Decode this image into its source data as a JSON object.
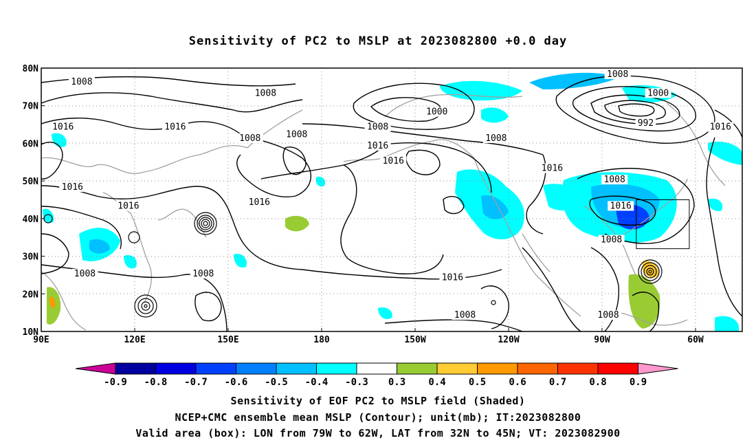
{
  "title": "Sensitivity of PC2 to MSLP at 2023082800 +0.0 day",
  "map": {
    "lat_labels": [
      "80N",
      "70N",
      "60N",
      "50N",
      "40N",
      "30N",
      "20N",
      "10N"
    ],
    "lon_labels": [
      "90E",
      "120E",
      "150E",
      "180",
      "150W",
      "120W",
      "90W",
      "60W"
    ],
    "lat_values": [
      80,
      70,
      60,
      50,
      40,
      30,
      20,
      10
    ],
    "lon_values": [
      90,
      120,
      150,
      180,
      210,
      240,
      270,
      300
    ],
    "lon_range": [
      90,
      315
    ],
    "lat_range": [
      10,
      80
    ],
    "grid": "dotted",
    "contour_color": "#000000",
    "coast_color": "#a0a0a0",
    "contour_labels": [
      {
        "text": "1008",
        "lon": 103,
        "lat": 76
      },
      {
        "text": "1008",
        "lon": 162,
        "lat": 73
      },
      {
        "text": "1016",
        "lon": 97,
        "lat": 64
      },
      {
        "text": "1016",
        "lon": 133,
        "lat": 64
      },
      {
        "text": "1008",
        "lon": 157,
        "lat": 61
      },
      {
        "text": "1008",
        "lon": 172,
        "lat": 62
      },
      {
        "text": "1000",
        "lon": 217,
        "lat": 68
      },
      {
        "text": "1008",
        "lon": 198,
        "lat": 64
      },
      {
        "text": "1016",
        "lon": 198,
        "lat": 59
      },
      {
        "text": "1016",
        "lon": 203,
        "lat": 55
      },
      {
        "text": "1008",
        "lon": 236,
        "lat": 61
      },
      {
        "text": "1016",
        "lon": 254,
        "lat": 53
      },
      {
        "text": "1008",
        "lon": 275,
        "lat": 78
      },
      {
        "text": "1000",
        "lon": 288,
        "lat": 73
      },
      {
        "text": "992",
        "lon": 284,
        "lat": 65
      },
      {
        "text": "1016",
        "lon": 308,
        "lat": 64
      },
      {
        "text": "1008",
        "lon": 274,
        "lat": 50
      },
      {
        "text": "1016",
        "lon": 276,
        "lat": 43
      },
      {
        "text": "1008",
        "lon": 273,
        "lat": 34
      },
      {
        "text": "1016",
        "lon": 100,
        "lat": 48
      },
      {
        "text": "1016",
        "lon": 118,
        "lat": 43
      },
      {
        "text": "1016",
        "lon": 160,
        "lat": 44
      },
      {
        "text": "1008",
        "lon": 104,
        "lat": 25
      },
      {
        "text": "1008",
        "lon": 142,
        "lat": 25
      },
      {
        "text": "1016",
        "lon": 222,
        "lat": 24
      },
      {
        "text": "1008",
        "lon": 226,
        "lat": 14
      },
      {
        "text": "1008",
        "lon": 272,
        "lat": 14
      }
    ],
    "valid_box": {
      "lon_min": 281,
      "lon_max": 298,
      "lat_min": 32,
      "lat_max": 45
    }
  },
  "colorbar": {
    "labels": [
      "-0.9",
      "-0.8",
      "-0.7",
      "-0.6",
      "-0.5",
      "-0.4",
      "-0.3",
      "0.3",
      "0.4",
      "0.5",
      "0.6",
      "0.7",
      "0.8",
      "0.9"
    ],
    "colors": [
      "#0000a0",
      "#0000e0",
      "#0040ff",
      "#0080ff",
      "#00c0ff",
      "#00ffff",
      "#ffffff",
      "#99cc33",
      "#ffcc33",
      "#ff9900",
      "#ff6600",
      "#ff3300",
      "#ff0000"
    ],
    "low_end_color": "#cc0099",
    "high_end_color": "#ff99cc"
  },
  "captions": {
    "line1": "Sensitivity of EOF PC2 to MSLP field (Shaded)",
    "line2": "NCEP+CMC ensemble mean MSLP (Contour); unit(mb); IT:2023082800",
    "line3": "Valid area (box): LON from 79W to 62W, LAT from 32N to 45N; VT: 2023082900"
  }
}
